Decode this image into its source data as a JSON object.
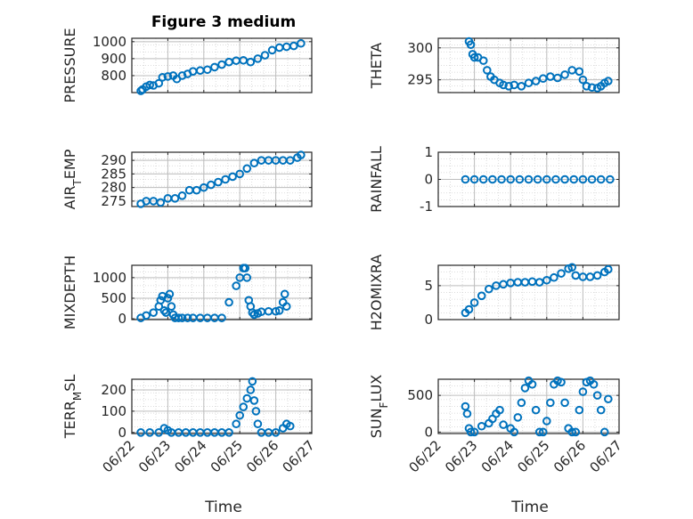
{
  "figure": {
    "title": "Figure 3 medium",
    "xlabel": "Time"
  },
  "chart_data": [
    {
      "type": "scatter",
      "ylabel": "PRESSURE",
      "ylim": [
        700,
        1020
      ],
      "yticks": [
        800,
        900,
        1000
      ],
      "xlim": [
        0,
        5
      ],
      "xticks": [
        "06/22",
        "06/23",
        "06/24",
        "06/25",
        "06/26",
        "06/27"
      ],
      "grid": true,
      "x": [
        0.25,
        0.3,
        0.4,
        0.5,
        0.6,
        0.75,
        0.85,
        1.0,
        1.15,
        1.25,
        1.4,
        1.55,
        1.7,
        1.9,
        2.1,
        2.3,
        2.5,
        2.7,
        2.9,
        3.1,
        3.3,
        3.5,
        3.7,
        3.9,
        4.1,
        4.3,
        4.5,
        4.7
      ],
      "y": [
        710,
        718,
        735,
        745,
        742,
        755,
        790,
        795,
        800,
        780,
        800,
        810,
        825,
        830,
        835,
        850,
        865,
        880,
        888,
        890,
        880,
        900,
        920,
        950,
        965,
        970,
        975,
        990
      ]
    },
    {
      "type": "scatter",
      "ylabel": "THETA",
      "ylim": [
        293,
        301.5
      ],
      "yticks": [
        295,
        300
      ],
      "xlim": [
        0,
        5
      ],
      "xticks": [
        "06/22",
        "06/23",
        "06/24",
        "06/25",
        "06/26",
        "06/27"
      ],
      "grid": true,
      "x": [
        0.85,
        0.9,
        0.95,
        1.0,
        1.1,
        1.25,
        1.35,
        1.45,
        1.55,
        1.7,
        1.8,
        1.95,
        2.1,
        2.3,
        2.5,
        2.7,
        2.9,
        3.1,
        3.3,
        3.5,
        3.7,
        3.9,
        4.0,
        4.1,
        4.25,
        4.4,
        4.5,
        4.6,
        4.7
      ],
      "y": [
        301,
        300.5,
        299,
        298.5,
        298.5,
        298,
        296.5,
        295.5,
        295,
        294.5,
        294.2,
        294,
        294.2,
        294,
        294.5,
        294.8,
        295.2,
        295.5,
        295.3,
        295.8,
        296.5,
        296.3,
        295,
        294,
        293.8,
        293.7,
        294,
        294.5,
        294.8
      ]
    },
    {
      "type": "scatter",
      "ylabel": "AIR_TEMP",
      "ylim": [
        273,
        293
      ],
      "yticks": [
        275,
        280,
        285,
        290
      ],
      "xlim": [
        0,
        5
      ],
      "xticks": [
        "06/22",
        "06/23",
        "06/24",
        "06/25",
        "06/26",
        "06/27"
      ],
      "grid": true,
      "x": [
        0.25,
        0.4,
        0.6,
        0.8,
        1.0,
        1.2,
        1.4,
        1.6,
        1.8,
        2.0,
        2.2,
        2.4,
        2.6,
        2.8,
        3.0,
        3.2,
        3.4,
        3.6,
        3.8,
        4.0,
        4.2,
        4.4,
        4.6,
        4.7
      ],
      "y": [
        274,
        275,
        275,
        274.5,
        276,
        276,
        277,
        279,
        279,
        280,
        281,
        282,
        283,
        284,
        285,
        287,
        289,
        290,
        290,
        290,
        290,
        290,
        291,
        292
      ]
    },
    {
      "type": "scatter",
      "ylabel": "RAINFALL",
      "ylim": [
        -1,
        1
      ],
      "yticks": [
        -1,
        0,
        1
      ],
      "xlim": [
        0,
        5
      ],
      "xticks": [
        "06/22",
        "06/23",
        "06/24",
        "06/25",
        "06/26",
        "06/27"
      ],
      "grid": true,
      "x": [
        0.75,
        1.0,
        1.25,
        1.5,
        1.75,
        2.0,
        2.25,
        2.5,
        2.75,
        3.0,
        3.25,
        3.5,
        3.75,
        4.0,
        4.25,
        4.5,
        4.75
      ],
      "y": [
        0,
        0,
        0,
        0,
        0,
        0,
        0,
        0,
        0,
        0,
        0,
        0,
        0,
        0,
        0,
        0,
        0
      ]
    },
    {
      "type": "scatter",
      "ylabel": "MIXDEPTH",
      "ylim": [
        -20,
        1300
      ],
      "yticks": [
        0,
        500,
        1000
      ],
      "xlim": [
        0,
        5
      ],
      "xticks": [
        "06/22",
        "06/23",
        "06/24",
        "06/25",
        "06/26",
        "06/27"
      ],
      "grid": true,
      "x": [
        0.25,
        0.4,
        0.6,
        0.75,
        0.8,
        0.85,
        0.9,
        0.95,
        1.0,
        1.05,
        1.1,
        1.15,
        1.2,
        1.3,
        1.4,
        1.55,
        1.7,
        1.9,
        2.1,
        2.3,
        2.5,
        2.7,
        2.9,
        3.0,
        3.1,
        3.15,
        3.2,
        3.25,
        3.3,
        3.35,
        3.4,
        3.5,
        3.6,
        3.8,
        4.0,
        4.1,
        4.2,
        4.25,
        4.3
      ],
      "y": [
        20,
        80,
        150,
        300,
        450,
        550,
        200,
        150,
        500,
        600,
        300,
        100,
        20,
        20,
        20,
        20,
        20,
        20,
        20,
        20,
        20,
        400,
        800,
        1000,
        1230,
        1230,
        1000,
        450,
        300,
        150,
        100,
        130,
        170,
        180,
        180,
        200,
        400,
        600,
        300
      ]
    },
    {
      "type": "scatter",
      "ylabel": "H2OMIXRA",
      "ylim": [
        0,
        8
      ],
      "yticks": [
        0,
        5
      ],
      "xlim": [
        0,
        5
      ],
      "xticks": [
        "06/22",
        "06/23",
        "06/24",
        "06/25",
        "06/26",
        "06/27"
      ],
      "grid": true,
      "x": [
        0.75,
        0.85,
        1.0,
        1.2,
        1.4,
        1.6,
        1.8,
        2.0,
        2.2,
        2.4,
        2.6,
        2.8,
        3.0,
        3.2,
        3.4,
        3.6,
        3.7,
        3.8,
        4.0,
        4.2,
        4.4,
        4.6,
        4.7
      ],
      "y": [
        1,
        1.5,
        2.5,
        3.5,
        4.5,
        5.0,
        5.2,
        5.4,
        5.5,
        5.5,
        5.6,
        5.5,
        5.8,
        6.2,
        6.8,
        7.5,
        7.7,
        6.5,
        6.3,
        6.3,
        6.5,
        7.0,
        7.4
      ]
    },
    {
      "type": "scatter",
      "ylabel": "TERR_MSL",
      "ylim": [
        -5,
        250
      ],
      "yticks": [
        0,
        100,
        200
      ],
      "xlim": [
        0,
        5
      ],
      "xticks": [
        "06/22",
        "06/23",
        "06/24",
        "06/25",
        "06/26",
        "06/27"
      ],
      "grid": true,
      "x": [
        0.25,
        0.5,
        0.75,
        0.9,
        1.0,
        1.1,
        1.3,
        1.5,
        1.7,
        1.9,
        2.1,
        2.3,
        2.5,
        2.7,
        2.9,
        3.0,
        3.1,
        3.2,
        3.3,
        3.35,
        3.4,
        3.45,
        3.5,
        3.6,
        3.8,
        4.0,
        4.2,
        4.3,
        4.4
      ],
      "y": [
        0,
        0,
        0,
        20,
        10,
        0,
        0,
        0,
        0,
        0,
        0,
        0,
        0,
        0,
        40,
        80,
        120,
        160,
        200,
        240,
        150,
        100,
        40,
        0,
        0,
        0,
        20,
        40,
        30
      ]
    },
    {
      "type": "scatter",
      "ylabel": "SUN_FLUX",
      "ylim": [
        -20,
        720
      ],
      "yticks": [
        0,
        500
      ],
      "xlim": [
        0,
        5
      ],
      "xticks": [
        "06/22",
        "06/23",
        "06/24",
        "06/25",
        "06/26",
        "06/27"
      ],
      "grid": true,
      "x": [
        0.75,
        0.8,
        0.85,
        0.9,
        1.0,
        1.2,
        1.4,
        1.5,
        1.6,
        1.7,
        1.8,
        2.0,
        2.1,
        2.2,
        2.3,
        2.4,
        2.5,
        2.6,
        2.7,
        2.8,
        2.9,
        3.0,
        3.1,
        3.2,
        3.3,
        3.4,
        3.5,
        3.6,
        3.7,
        3.8,
        3.9,
        4.0,
        4.1,
        4.2,
        4.3,
        4.4,
        4.5,
        4.6,
        4.7
      ],
      "y": [
        350,
        250,
        50,
        0,
        0,
        80,
        120,
        180,
        250,
        300,
        100,
        50,
        0,
        200,
        400,
        600,
        700,
        650,
        300,
        0,
        0,
        150,
        400,
        650,
        700,
        680,
        400,
        50,
        0,
        0,
        300,
        550,
        680,
        700,
        650,
        500,
        300,
        0,
        450
      ]
    }
  ]
}
